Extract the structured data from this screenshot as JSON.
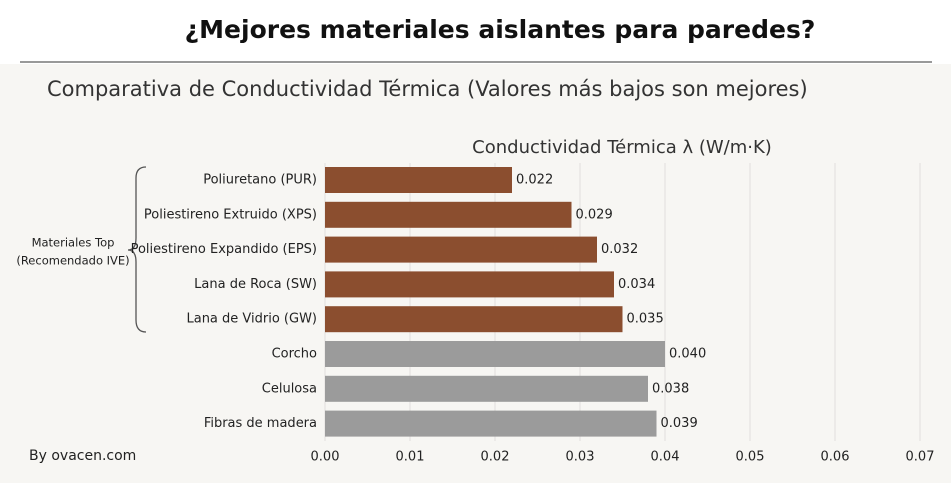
{
  "chart_data": {
    "type": "barh",
    "title": "¿Mejores materiales aislantes para paredes?",
    "subtitle": "Comparativa de Conductividad Térmica (Valores más bajos son mejores)",
    "x_label": "Conductividad Térmica λ (W/m·K)",
    "annotation": [
      "Materiales Top",
      "(Recomendado IVE)"
    ],
    "source": "By ovacen.com",
    "categories": [
      "Poliuretano (PUR)",
      "Poliestireno Extruido (XPS)",
      "Poliestireno Expandido (EPS)",
      "Lana de Roca (SW)",
      "Lana de Vidrio (GW)",
      "Corcho",
      "Celulosa",
      "Fibras de madera"
    ],
    "values": [
      0.022,
      0.029,
      0.032,
      0.034,
      0.035,
      0.04,
      0.038,
      0.039
    ],
    "value_labels": [
      "0.022",
      "0.029",
      "0.032",
      "0.034",
      "0.035",
      "0.040",
      "0.038",
      "0.039"
    ],
    "colors": [
      "#8b4e2f",
      "#8b4e2f",
      "#8b4e2f",
      "#8b4e2f",
      "#8b4e2f",
      "#9b9b9b",
      "#9b9b9b",
      "#9b9b9b"
    ],
    "xlim": [
      0,
      0.07
    ],
    "xticks": [
      {
        "value": 0,
        "label": "0.00"
      },
      {
        "value": 0.01,
        "label": "0.01"
      },
      {
        "value": 0.02,
        "label": "0.02"
      },
      {
        "value": 0.03,
        "label": "0.03"
      },
      {
        "value": 0.04,
        "label": "0.04"
      },
      {
        "value": 0.05,
        "label": "0.05"
      },
      {
        "value": 0.06,
        "label": "0.06"
      },
      {
        "value": 0.07,
        "label": "0.07"
      }
    ],
    "grid": true
  }
}
